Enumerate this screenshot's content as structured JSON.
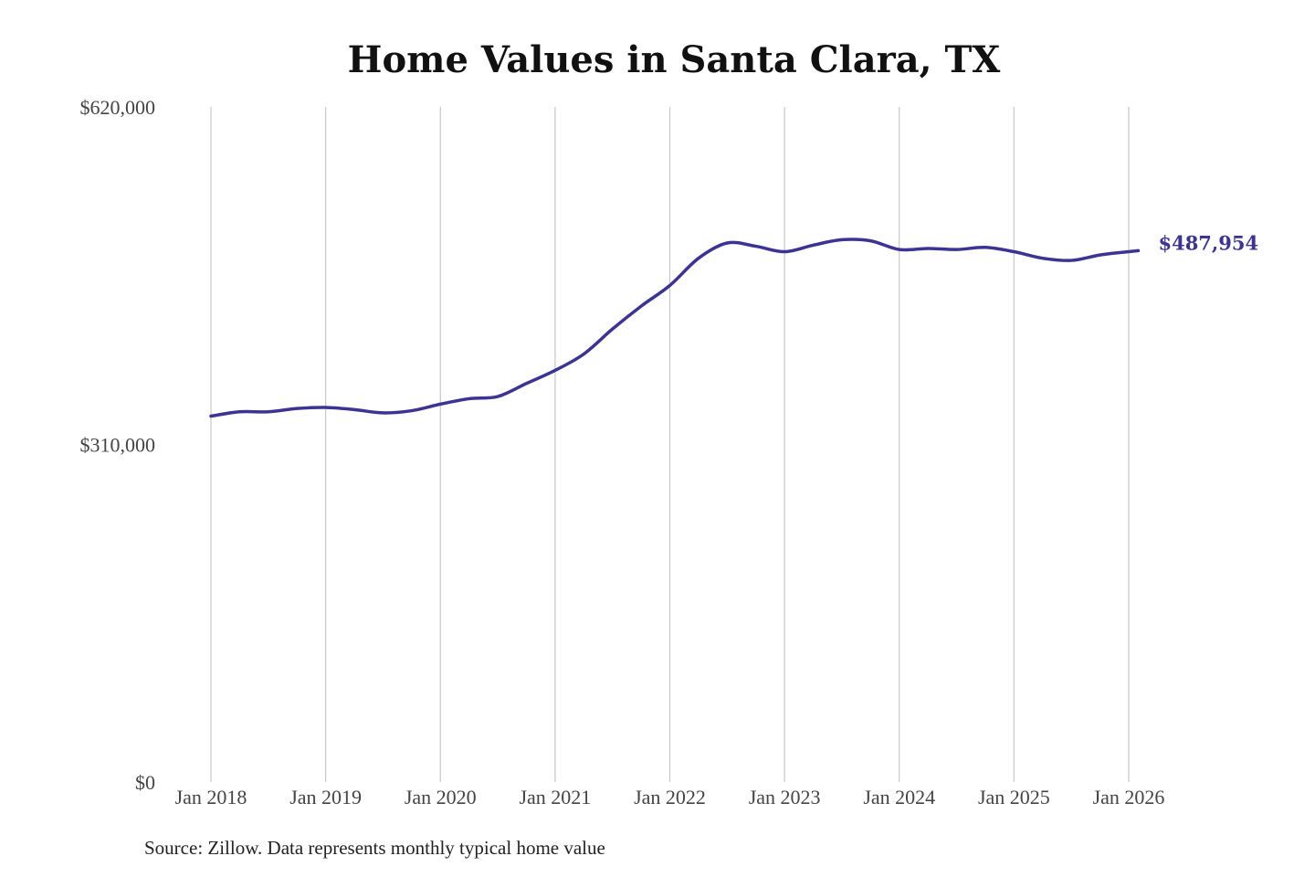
{
  "chart_data": {
    "type": "line",
    "title": "Home Values in Santa Clara, TX",
    "source": "Source: Zillow. Data represents monthly typical home value",
    "xlabel": "",
    "ylabel": "",
    "ylim": [
      0,
      620000
    ],
    "y_ticks": [
      0,
      310000,
      620000
    ],
    "y_tick_labels": [
      "$0",
      "$310,000",
      "$620,000"
    ],
    "x_tick_labels": [
      "Jan 2018",
      "Jan 2019",
      "Jan 2020",
      "Jan 2021",
      "Jan 2022",
      "Jan 2023",
      "Jan 2024",
      "Jan 2025",
      "Jan 2026"
    ],
    "x_ticks": [
      "2018-01",
      "2019-01",
      "2020-01",
      "2021-01",
      "2022-01",
      "2023-01",
      "2024-01",
      "2025-01",
      "2026-01"
    ],
    "grid": "vertical",
    "line_color": "#3b3494",
    "end_label": "$487,954",
    "series": [
      {
        "x": [
          "2018-01",
          "2018-04",
          "2018-07",
          "2018-10",
          "2019-01",
          "2019-04",
          "2019-07",
          "2019-10",
          "2020-01",
          "2020-04",
          "2020-07",
          "2020-10",
          "2021-01",
          "2021-04",
          "2021-07",
          "2021-10",
          "2022-01",
          "2022-04",
          "2022-07",
          "2022-10",
          "2023-01",
          "2023-04",
          "2023-07",
          "2023-10",
          "2024-01",
          "2024-04",
          "2024-07",
          "2024-10",
          "2025-01",
          "2025-04",
          "2025-07",
          "2025-10",
          "2026-01",
          "2026-02"
        ],
        "values": [
          336000,
          340000,
          340000,
          343000,
          344000,
          342000,
          339000,
          341000,
          347000,
          352000,
          354000,
          366000,
          378000,
          393000,
          416000,
          437000,
          456000,
          481000,
          495000,
          492000,
          487000,
          493000,
          498000,
          497000,
          489000,
          490000,
          489000,
          491000,
          487000,
          481000,
          479000,
          484000,
          487000,
          487954
        ]
      }
    ]
  }
}
